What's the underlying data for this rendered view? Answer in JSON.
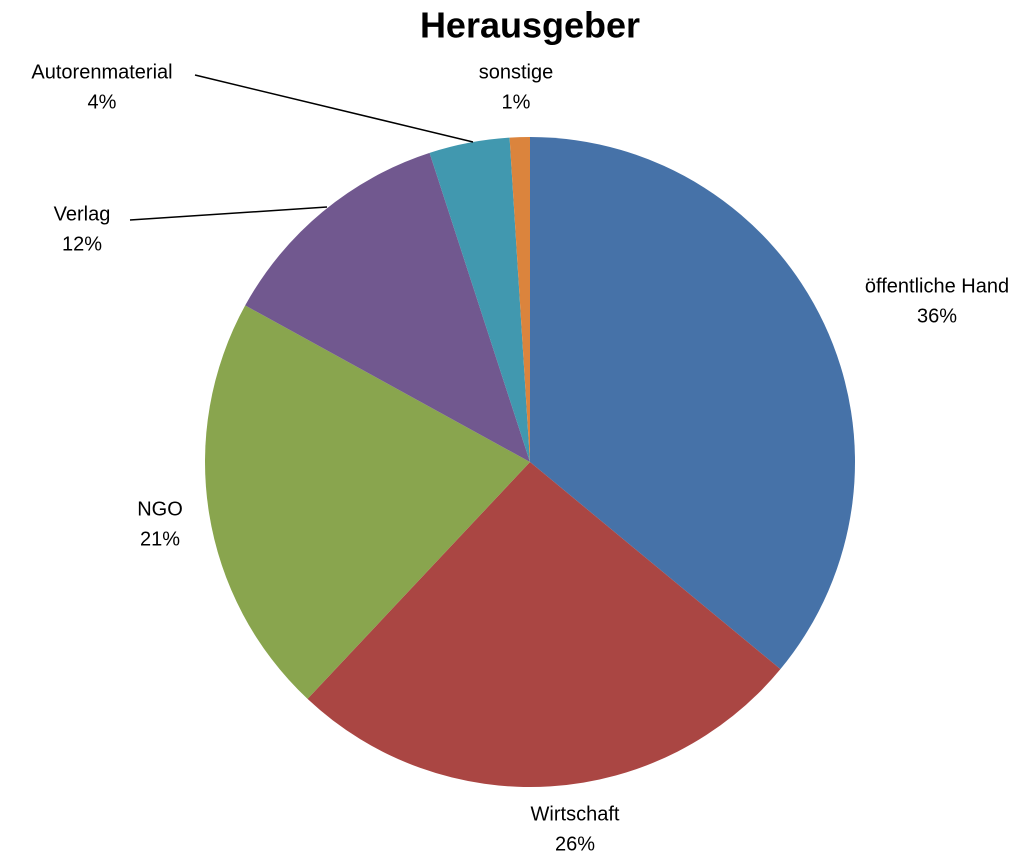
{
  "chart_data": {
    "type": "pie",
    "title": "Herausgeber",
    "categories": [
      "öffentliche Hand",
      "Wirtschaft",
      "NGO",
      "Verlag",
      "Autorenmaterial",
      "sonstige"
    ],
    "values": [
      36,
      26,
      21,
      12,
      4,
      1
    ],
    "value_labels": [
      "36%",
      "26%",
      "21%",
      "12%",
      "4%",
      "1%"
    ],
    "colors": [
      "#4672a8",
      "#aa4643",
      "#89a54e",
      "#71588f",
      "#4198af",
      "#db843d"
    ]
  }
}
